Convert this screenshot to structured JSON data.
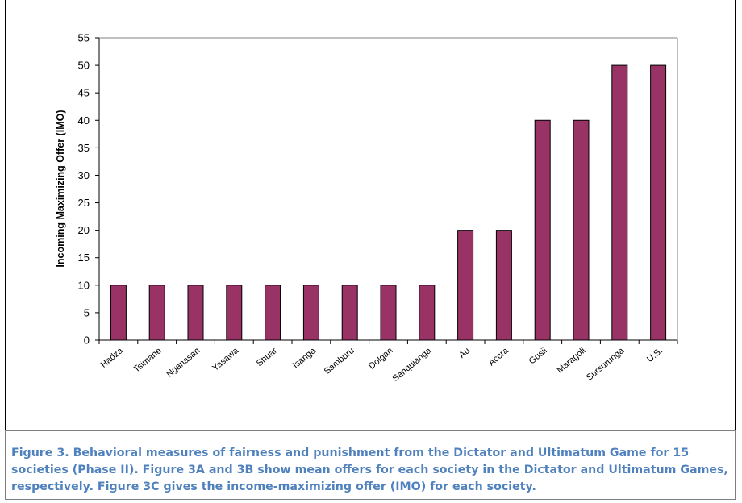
{
  "chart_data": {
    "type": "bar",
    "categories": [
      "Hadza",
      "Tsimane",
      "Nganasan",
      "Yasawa",
      "Shuar",
      "Isanga",
      "Samburu",
      "Dolgan",
      "Sanquianga",
      "Au",
      "Accra",
      "Gusii",
      "Maragoli",
      "Sursurunga",
      "U.S."
    ],
    "values": [
      10,
      10,
      10,
      10,
      10,
      10,
      10,
      10,
      10,
      20,
      20,
      40,
      40,
      50,
      50
    ],
    "title": "",
    "xlabel": "",
    "ylabel": "Incoming Maximizing Offer (IMO)",
    "ylim": [
      0,
      55
    ],
    "yticks": [
      0,
      5,
      10,
      15,
      20,
      25,
      30,
      35,
      40,
      45,
      50,
      55
    ],
    "bar_color": "#993366",
    "grid": false
  },
  "caption": {
    "text": "Figure 3. Behavioral measures of fairness and punishment from the Dictator and Ultimatum Game for 15 societies (Phase II). Figure 3A and 3B show mean offers for each society in the Dictator and Ultimatum Games, respectively. Figure 3C gives the income-maximizing offer (IMO) for each society.",
    "color": "#4f81bd"
  }
}
